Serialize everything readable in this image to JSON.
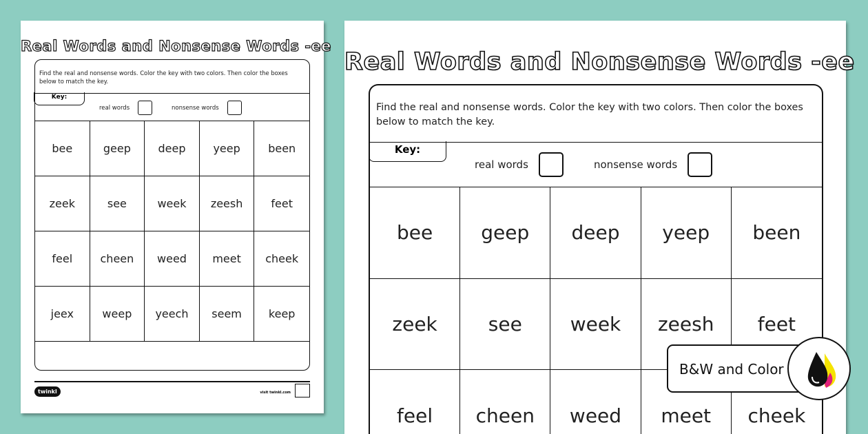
{
  "worksheet": {
    "title": "Real Words and Nonsense Words -ee",
    "instructions": "Find the real and nonsense words. Color the key with two colors. Then color the boxes below to match the key.",
    "key_label": "Key:",
    "real_label": "real words",
    "nonsense_label": "nonsense words",
    "words": [
      "bee",
      "geep",
      "deep",
      "yeep",
      "been",
      "zeek",
      "see",
      "week",
      "zeesh",
      "feet",
      "feel",
      "cheen",
      "weed",
      "meet",
      "cheek",
      "jeex",
      "weep",
      "yeech",
      "seem",
      "keep"
    ],
    "logo": "twinkl",
    "footer_link": "visit twinkl.com"
  },
  "badge": {
    "label": "B&W and Color",
    "icon": "ink-drops-icon"
  },
  "colors": {
    "background": "#8dcdc1"
  }
}
